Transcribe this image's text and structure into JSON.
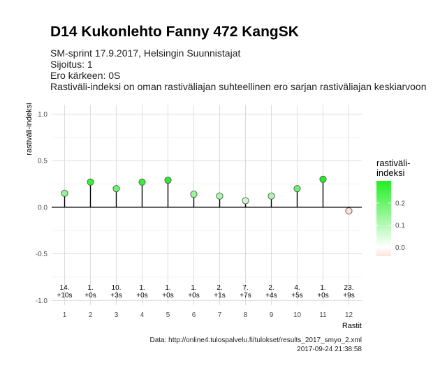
{
  "header": {
    "title": "D14 Kukonlehto Fanny 472 KangSK",
    "subtitle_lines": [
      "SM-sprint 17.9.2017, Helsingin Suunnistajat",
      "Sijoitus: 1",
      "Ero kärkeen: 0S",
      "Rastiväli-indeksi on oman rastiväliajan suhteellinen ero sarjan rastiväliajan keskiarvoon"
    ]
  },
  "caption": {
    "source": "Data: http://online4.tulospalvelu.fi/tulokset/results_2017_smyo_2.xml",
    "timestamp": "2017-09-24 21:38:58"
  },
  "chart_data": {
    "type": "scatter",
    "style": "lollipop",
    "xlabel": "Rastit",
    "ylabel": "rastiväli-indeksi",
    "ylim": [
      -1.0,
      1.0
    ],
    "y_ticks": [
      "1.0",
      "0.5",
      "0.0",
      "-0.5",
      "-1.0"
    ],
    "y_tick_values": [
      1.0,
      0.5,
      0.0,
      -0.5,
      -1.0
    ],
    "x": [
      1,
      2,
      3,
      4,
      5,
      6,
      7,
      8,
      9,
      10,
      11,
      12
    ],
    "x_tick_labels": [
      "1",
      "2",
      "3",
      "4",
      "5",
      "6",
      "7",
      "8",
      "9",
      "10",
      "11",
      "12"
    ],
    "values": [
      0.15,
      0.27,
      0.2,
      0.27,
      0.29,
      0.14,
      0.12,
      0.07,
      0.12,
      0.2,
      0.3,
      -0.04
    ],
    "ranks": [
      "14.",
      "1.",
      "10.",
      "1.",
      "1.",
      "1.",
      "2.",
      "7.",
      "2.",
      "4.",
      "1.",
      "23."
    ],
    "diffs": [
      "+10s",
      "+0s",
      "+3s",
      "+0s",
      "+0s",
      "+0s",
      "+1s",
      "+7s",
      "+4s",
      "+5s",
      "+0s",
      "+9s"
    ],
    "grid": true,
    "legend": {
      "title_lines": [
        "rastiväli-",
        "indeksi"
      ],
      "position": "right",
      "ticks": [
        "0.2",
        "0.1",
        "0.0"
      ],
      "tick_values": [
        0.2,
        0.1,
        0.0
      ],
      "scale_range": [
        -0.04,
        0.3
      ],
      "colors": {
        "high": "#22ee22",
        "mid": "#ffffff",
        "low": "#fbe2dc"
      }
    },
    "colors": {
      "background": "#ffffff",
      "grid": "#d9d9d9",
      "zero_line": "#000000",
      "stem": "#000000"
    }
  }
}
